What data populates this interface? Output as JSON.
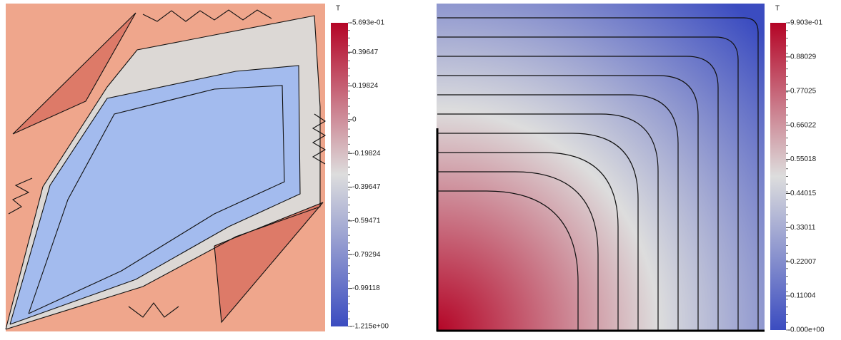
{
  "chart_data": [
    {
      "type": "contour",
      "colorbar_title": "T",
      "zlim": [
        -1.215,
        0.5693
      ],
      "zticks": [
        {
          "value": 0.5693,
          "label": "5.693e-01"
        },
        0.39647,
        0.19824,
        0,
        -0.19824,
        -0.39647,
        -0.59471,
        -0.79294,
        -0.99118,
        {
          "value": -1.215,
          "label": "-1.215e+00"
        }
      ],
      "colormap": [
        "#3b4cc0",
        "#dddddd",
        "#b40426"
      ]
    },
    {
      "type": "contour",
      "colorbar_title": "T",
      "zlim": [
        0,
        0.9903
      ],
      "zticks": [
        {
          "value": 0.9903,
          "label": "9.903e-01"
        },
        0.88029,
        0.77025,
        0.66022,
        0.55018,
        0.44015,
        0.33011,
        0.22007,
        0.11004,
        {
          "value": 0,
          "label": "0.000e+00"
        }
      ],
      "colormap": [
        "#3b4cc0",
        "#dddddd",
        "#b40426"
      ]
    }
  ]
}
